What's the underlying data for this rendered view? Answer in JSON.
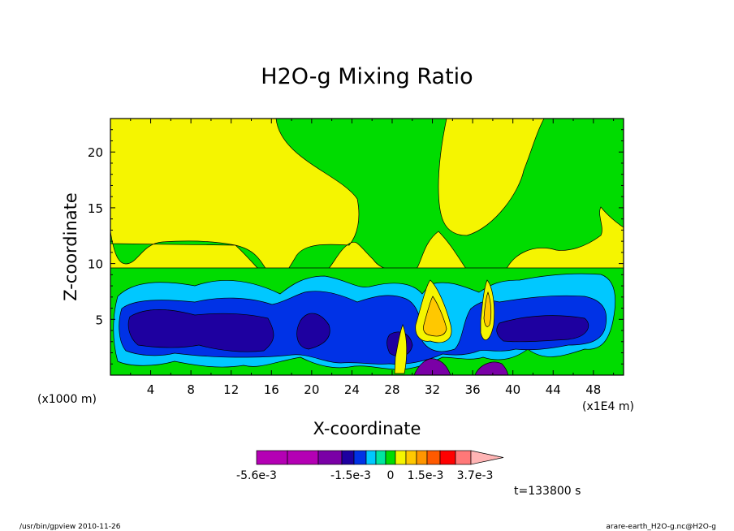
{
  "chart_data": {
    "type": "heatmap",
    "title": "H2O-g Mixing Ratio",
    "xlabel": "X-coordinate",
    "ylabel": "Z-coordinate",
    "x_unit_left": "(x1000 m)",
    "x_unit_right": "(x1E4 m)",
    "xlim": [
      0,
      51
    ],
    "ylim": [
      0,
      23
    ],
    "x_ticks": [
      "4",
      "8",
      "12",
      "16",
      "20",
      "24",
      "28",
      "32",
      "36",
      "40",
      "44",
      "48"
    ],
    "y_ticks": [
      "5",
      "10",
      "15",
      "20"
    ],
    "colorbar": {
      "colors": [
        "#b400b4",
        "#b400b4",
        "#7a00a6",
        "#1e00a0",
        "#0032e6",
        "#00c8ff",
        "#00e6a0",
        "#00dc00",
        "#f5f500",
        "#ffc800",
        "#ff9600",
        "#ff5a00",
        "#ff0000",
        "#ff7878",
        "#ffb4b4"
      ],
      "labels": [
        "-5.6e-3",
        "-1.5e-3",
        "0",
        "1.5e-3",
        "3.7e-3"
      ]
    },
    "time_label": "t=133800 s"
  },
  "footer": {
    "left": "/usr/bin/gpview  2010-11-26",
    "right": "arare-earth_H2O-g.nc@H2O-g"
  }
}
